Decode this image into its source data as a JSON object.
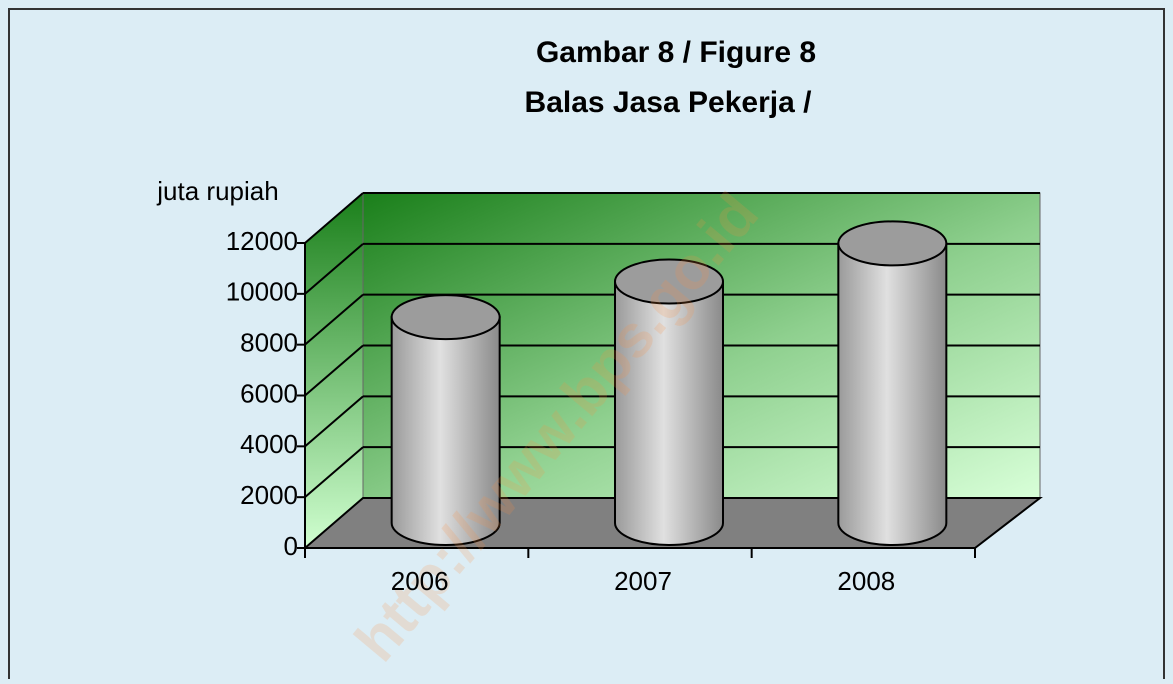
{
  "chart_data": {
    "type": "cylinder",
    "title": "Gambar 8 / Figure 8",
    "subtitle": "Balas Jasa Pekerja /",
    "y_label": "juta rupiah",
    "watermark": "http://www.bps.go.id",
    "categories": [
      "2006",
      "2007",
      "2008"
    ],
    "values": [
      8100,
      9500,
      11000
    ],
    "color": "#b0b0b0",
    "ylim": [
      0,
      12000
    ],
    "yticks": [
      0,
      2000,
      4000,
      6000,
      8000,
      10000,
      12000
    ],
    "grid": true
  }
}
